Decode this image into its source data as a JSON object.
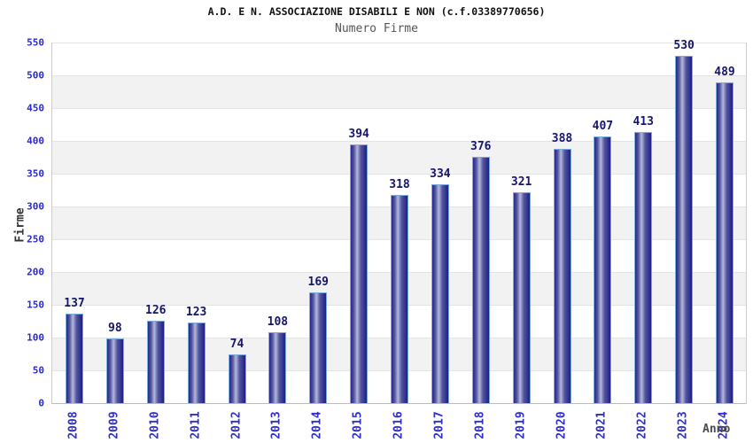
{
  "chart_data": {
    "type": "bar",
    "title": "A.D. E N. ASSOCIAZIONE DISABILI E NON (c.f.03389770656)",
    "subtitle": "Numero Firme",
    "xlabel": "Anno",
    "ylabel": "Firme",
    "categories": [
      "2008",
      "2009",
      "2010",
      "2011",
      "2012",
      "2013",
      "2014",
      "2015",
      "2016",
      "2017",
      "2018",
      "2019",
      "2020",
      "2021",
      "2022",
      "2023",
      "2024"
    ],
    "values": [
      137,
      98,
      126,
      123,
      74,
      108,
      169,
      394,
      318,
      334,
      376,
      321,
      388,
      407,
      413,
      530,
      489
    ],
    "ylim": [
      0,
      550
    ],
    "ytick_step": 50,
    "yticks": [
      0,
      50,
      100,
      150,
      200,
      250,
      300,
      350,
      400,
      450,
      500,
      550
    ],
    "grid": "horizontal gridlines every 50 units, alternating white/gray 50-unit bands",
    "legend": "none",
    "value_labels": "above each bar",
    "colors": {
      "bar_edge_dark": "#26268e",
      "bar_center_light": "#b4b8dc",
      "bar_outline_light_blue": "#7aaade",
      "tick_label_blue": "#2a2acc",
      "value_label_navy": "#15156b",
      "band_gray": "#f2f2f2",
      "grid_line": "#e4e4e4",
      "axis_line": "#cccccc",
      "title_color": "#111111",
      "subtitle_color": "#555555",
      "axis_title_color": "#4a4a4a"
    }
  }
}
